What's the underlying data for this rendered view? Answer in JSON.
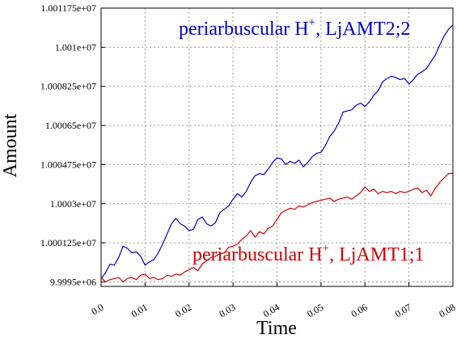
{
  "chart_data": {
    "type": "line",
    "xlabel": "Time",
    "ylabel": "Amount",
    "xlim": [
      0,
      0.08
    ],
    "ylim": [
      9999300,
      10011750
    ],
    "x_ticks": [
      "0.0",
      "0.01",
      "0.02",
      "0.03",
      "0.04",
      "0.05",
      "0.06",
      "0.07",
      "0.08"
    ],
    "y_ticks": [
      "1.001175e+07",
      "1.001e+07",
      "1.000825e+07",
      "1.00065e+07",
      "1.000475e+07",
      "1.0003e+07",
      "1.000125e+07",
      "9.9995e+06"
    ],
    "y_tick_values": [
      10011750,
      10010000,
      10008250,
      10006500,
      10004750,
      10003000,
      10001250,
      9999500
    ],
    "grid": true,
    "series": [
      {
        "name": "periarbuscular H+, LjAMT2;2",
        "label_base": "periarbuscular H",
        "label_sup": "+",
        "label_tail": ", LjAMT2;2",
        "color": "#0000c8",
        "x": [
          0,
          0.001,
          0.002,
          0.003,
          0.004,
          0.005,
          0.006,
          0.007,
          0.008,
          0.009,
          0.01,
          0.011,
          0.012,
          0.013,
          0.014,
          0.015,
          0.016,
          0.017,
          0.018,
          0.019,
          0.02,
          0.021,
          0.022,
          0.023,
          0.024,
          0.025,
          0.026,
          0.027,
          0.028,
          0.029,
          0.03,
          0.031,
          0.032,
          0.033,
          0.034,
          0.035,
          0.036,
          0.037,
          0.038,
          0.039,
          0.04,
          0.041,
          0.042,
          0.043,
          0.044,
          0.045,
          0.046,
          0.047,
          0.048,
          0.049,
          0.05,
          0.051,
          0.052,
          0.053,
          0.054,
          0.055,
          0.056,
          0.057,
          0.058,
          0.059,
          0.06,
          0.061,
          0.062,
          0.063,
          0.064,
          0.065,
          0.066,
          0.067,
          0.068,
          0.069,
          0.07,
          0.071,
          0.072,
          0.073,
          0.074,
          0.075,
          0.076,
          0.077,
          0.078,
          0.079,
          0.08
        ],
        "y": [
          9999650,
          9999900,
          10000300,
          10000250,
          10000600,
          10001100,
          10001000,
          10000800,
          10000850,
          10000650,
          10000250,
          10000400,
          10000500,
          10000800,
          10001200,
          10001650,
          10002100,
          10002350,
          10002100,
          10002000,
          10001800,
          10001850,
          10002300,
          10002400,
          10002100,
          10002000,
          10002150,
          10002600,
          10002750,
          10002900,
          10003200,
          10003450,
          10003300,
          10003550,
          10003950,
          10004250,
          10004350,
          10004300,
          10004550,
          10004850,
          10005050,
          10005000,
          10004750,
          10004900,
          10004800,
          10004950,
          10004650,
          10004850,
          10005100,
          10005250,
          10005300,
          10005600,
          10006000,
          10006250,
          10006600,
          10007100,
          10007150,
          10007200,
          10007400,
          10007500,
          10007350,
          10007550,
          10007850,
          10008050,
          10008450,
          10008600,
          10008700,
          10008650,
          10008550,
          10008600,
          10008350,
          10008550,
          10008800,
          10008900,
          10009050,
          10009350,
          10009650,
          10010100,
          10010500,
          10010800,
          10011000
        ]
      },
      {
        "name": "periarbuscular H+, LjAMT1;1",
        "label_base": "periarbuscular H",
        "label_sup": "+",
        "label_tail": ", LjAMT1;1",
        "color": "#d10000",
        "x": [
          0,
          0.001,
          0.002,
          0.003,
          0.004,
          0.005,
          0.006,
          0.007,
          0.008,
          0.009,
          0.01,
          0.011,
          0.012,
          0.013,
          0.014,
          0.015,
          0.016,
          0.017,
          0.018,
          0.019,
          0.02,
          0.021,
          0.022,
          0.023,
          0.024,
          0.025,
          0.026,
          0.027,
          0.028,
          0.029,
          0.03,
          0.031,
          0.032,
          0.033,
          0.034,
          0.035,
          0.036,
          0.037,
          0.038,
          0.039,
          0.04,
          0.041,
          0.042,
          0.043,
          0.044,
          0.045,
          0.046,
          0.047,
          0.048,
          0.049,
          0.05,
          0.051,
          0.052,
          0.053,
          0.054,
          0.055,
          0.056,
          0.057,
          0.058,
          0.059,
          0.06,
          0.061,
          0.062,
          0.063,
          0.064,
          0.065,
          0.066,
          0.067,
          0.068,
          0.069,
          0.07,
          0.071,
          0.072,
          0.073,
          0.074,
          0.075,
          0.076,
          0.077,
          0.078,
          0.079,
          0.08
        ],
        "y": [
          9999700,
          9999500,
          9999600,
          9999650,
          9999700,
          9999500,
          9999650,
          9999700,
          9999600,
          9999800,
          9999850,
          9999650,
          9999700,
          9999600,
          9999650,
          9999800,
          9999750,
          9999850,
          9999800,
          9999950,
          10000050,
          10000150,
          10000000,
          10000300,
          10000450,
          10000600,
          10000650,
          10000750,
          10000800,
          10001050,
          10001100,
          10001200,
          10001400,
          10001550,
          10001800,
          10001500,
          10001750,
          10001650,
          10001900,
          10002000,
          10002300,
          10002600,
          10002700,
          10002800,
          10002750,
          10002900,
          10002850,
          10002950,
          10003050,
          10003100,
          10003150,
          10003200,
          10003250,
          10003100,
          10003200,
          10003250,
          10003300,
          10003200,
          10003350,
          10003500,
          10003750,
          10003550,
          10003650,
          10003450,
          10003550,
          10003500,
          10003550,
          10003450,
          10003550,
          10003500,
          10003550,
          10003650,
          10003700,
          10003500,
          10003600,
          10003350,
          10003700,
          10003950,
          10004150,
          10004350,
          10004350
        ]
      }
    ]
  }
}
